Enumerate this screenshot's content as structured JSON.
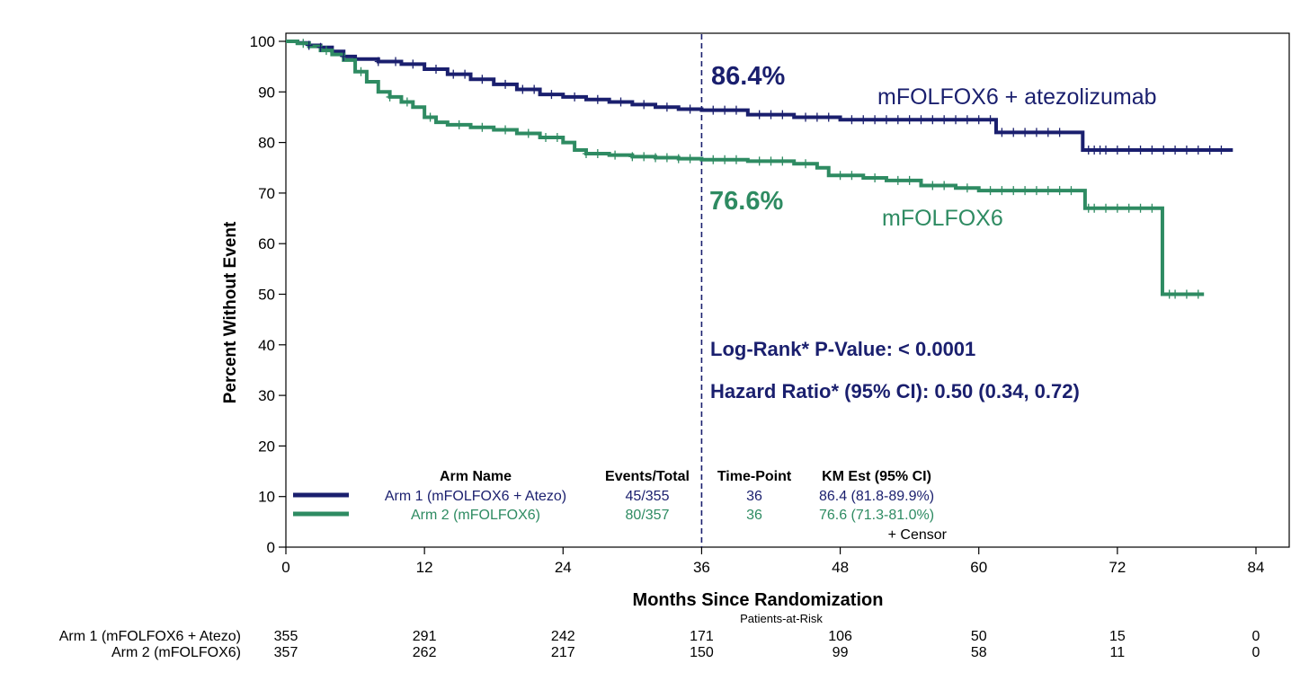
{
  "colors": {
    "arm1": "#1a1f6e",
    "arm2": "#2e8b62",
    "axis": "#000000"
  },
  "chart_data": {
    "type": "line",
    "title": "",
    "xlabel": "Months Since Randomization",
    "ylabel": "Percent Without Event",
    "xlim": [
      0,
      84
    ],
    "ylim": [
      0,
      100
    ],
    "x_ticks": [
      "0",
      "12",
      "24",
      "36",
      "48",
      "60",
      "72",
      "84"
    ],
    "y_ticks": [
      "0",
      "10",
      "20",
      "30",
      "40",
      "50",
      "60",
      "70",
      "80",
      "90",
      "100"
    ],
    "reference_line_x": 36,
    "series": [
      {
        "name": "mFOLFOX6 + atezolizumab",
        "color": "#1a1f6e",
        "estimate_label": "86.4%",
        "points": [
          [
            0,
            100
          ],
          [
            1,
            99.7
          ],
          [
            2,
            99.2
          ],
          [
            3,
            98.8
          ],
          [
            4,
            98
          ],
          [
            5,
            97
          ],
          [
            6,
            96.5
          ],
          [
            8,
            96
          ],
          [
            10,
            95.5
          ],
          [
            12,
            94.5
          ],
          [
            14,
            93.5
          ],
          [
            16,
            92.5
          ],
          [
            18,
            91.5
          ],
          [
            20,
            90.5
          ],
          [
            22,
            89.5
          ],
          [
            24,
            89
          ],
          [
            26,
            88.5
          ],
          [
            28,
            88
          ],
          [
            30,
            87.5
          ],
          [
            32,
            87
          ],
          [
            34,
            86.6
          ],
          [
            36,
            86.4
          ],
          [
            40,
            85.5
          ],
          [
            44,
            85
          ],
          [
            48,
            84.5
          ],
          [
            52,
            84.5
          ],
          [
            56,
            84.5
          ],
          [
            60,
            84.5
          ],
          [
            61.5,
            82
          ],
          [
            68,
            82
          ],
          [
            69,
            78.5
          ],
          [
            82,
            78.5
          ]
        ]
      },
      {
        "name": "mFOLFOX6",
        "color": "#2e8b62",
        "estimate_label": "76.6%",
        "points": [
          [
            0,
            100
          ],
          [
            1,
            99.6
          ],
          [
            2,
            99
          ],
          [
            3,
            98.2
          ],
          [
            4,
            97.4
          ],
          [
            5,
            96.3
          ],
          [
            6,
            94
          ],
          [
            7,
            92
          ],
          [
            8,
            90
          ],
          [
            9,
            89
          ],
          [
            10,
            88
          ],
          [
            11,
            87
          ],
          [
            12,
            85
          ],
          [
            13,
            84
          ],
          [
            14,
            83.5
          ],
          [
            16,
            83
          ],
          [
            18,
            82.5
          ],
          [
            20,
            81.8
          ],
          [
            22,
            81
          ],
          [
            24,
            80
          ],
          [
            25,
            78.5
          ],
          [
            26,
            77.8
          ],
          [
            28,
            77.5
          ],
          [
            30,
            77.2
          ],
          [
            32,
            77
          ],
          [
            34,
            76.8
          ],
          [
            36,
            76.6
          ],
          [
            40,
            76.3
          ],
          [
            44,
            75.8
          ],
          [
            46,
            75
          ],
          [
            47,
            73.5
          ],
          [
            50,
            73
          ],
          [
            52,
            72.5
          ],
          [
            55,
            71.5
          ],
          [
            58,
            71
          ],
          [
            60,
            70.5
          ],
          [
            63,
            70.5
          ],
          [
            66,
            70.5
          ],
          [
            68,
            70.5
          ],
          [
            69.2,
            67
          ],
          [
            72,
            67
          ],
          [
            75,
            67
          ],
          [
            75.9,
            50
          ],
          [
            79.5,
            50
          ]
        ]
      }
    ],
    "censor_marks": [
      [
        2,
        3,
        5,
        8,
        9.5,
        11,
        13,
        14.5,
        15.5,
        17,
        19,
        20.5,
        21.5,
        23,
        25,
        27,
        29,
        31,
        33,
        35,
        37,
        38,
        39,
        41,
        42,
        43,
        45,
        46,
        47,
        49,
        50,
        51,
        52,
        53,
        54,
        55,
        56,
        57,
        58,
        59,
        60,
        61,
        62,
        63,
        64,
        65,
        66,
        67,
        69.5,
        70,
        70.5,
        71,
        72,
        73,
        74,
        75,
        76,
        77,
        78,
        79,
        80,
        81
      ],
      [
        1.5,
        3.5,
        6.5,
        9,
        10.5,
        12.5,
        15,
        17,
        19,
        21,
        22.5,
        23.5,
        26,
        27,
        28.5,
        30,
        31,
        32,
        33,
        34,
        35,
        37,
        38,
        39,
        41,
        42,
        43,
        45,
        48,
        49,
        51,
        53,
        54,
        56,
        57,
        59,
        61,
        62,
        63,
        64,
        65,
        66,
        67,
        68,
        69.5,
        70,
        71,
        72,
        73,
        74,
        75,
        76.5,
        77,
        78,
        79
      ]
    ],
    "annotations": {
      "log_rank": "Log-Rank* P-Value: < 0.0001",
      "hazard_ratio": "Hazard Ratio* (95% CI): 0.50 (0.34, 0.72)"
    },
    "legend": {
      "headers": [
        "Arm Name",
        "Events/Total",
        "Time-Point",
        "KM Est (95% CI)"
      ],
      "rows": [
        {
          "arm": "Arm 1 (mFOLFOX6 + Atezo)",
          "events": "45/355",
          "timepoint": "36",
          "km": "86.4 (81.8-89.9%)"
        },
        {
          "arm": "Arm 2 (mFOLFOX6)",
          "events": "80/357",
          "timepoint": "36",
          "km": "76.6 (71.3-81.0%)"
        }
      ],
      "censor_label": "+ Censor"
    },
    "risk_table": {
      "title": "Patients-at-Risk",
      "times": [
        0,
        12,
        24,
        36,
        48,
        60,
        72,
        84
      ],
      "rows": [
        {
          "label": "Arm 1 (mFOLFOX6 + Atezo)",
          "values": [
            "355",
            "291",
            "242",
            "171",
            "106",
            "50",
            "15",
            "0"
          ]
        },
        {
          "label": "Arm 2 (mFOLFOX6)",
          "values": [
            "357",
            "262",
            "217",
            "150",
            "99",
            "58",
            "11",
            "0"
          ]
        }
      ]
    }
  }
}
